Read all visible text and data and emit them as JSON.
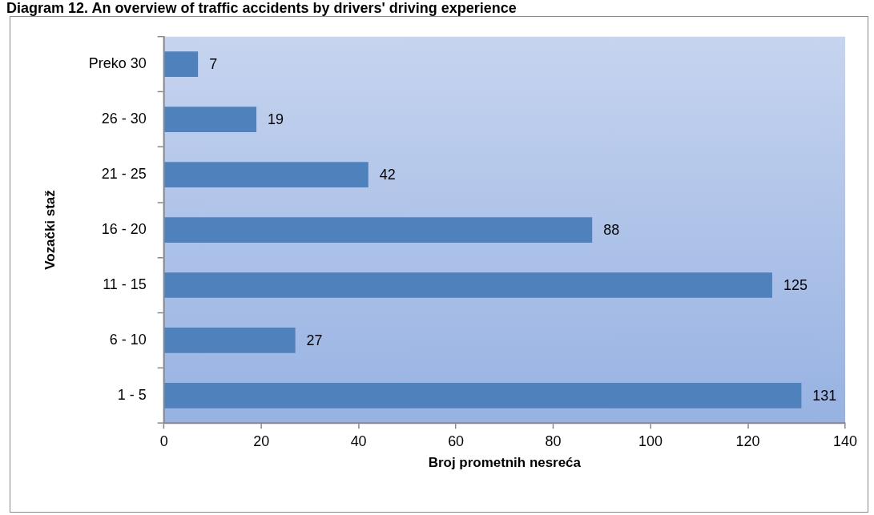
{
  "chart_data": {
    "type": "bar",
    "orientation": "horizontal",
    "title": "Diagram 12. An overview of traffic accidents by drivers' driving experience",
    "xlabel": "Broj prometnih nesreća",
    "ylabel": "Vozački staž",
    "categories": [
      "Preko 30",
      "26 - 30",
      "21 - 25",
      "16 - 20",
      "11 - 15",
      "6 - 10",
      "1 - 5"
    ],
    "values": [
      7,
      19,
      42,
      88,
      125,
      27,
      131
    ],
    "color": "#4f81bd",
    "xlim": [
      0,
      140
    ],
    "xticks": [
      0,
      20,
      40,
      60,
      80,
      100,
      120,
      140
    ],
    "data_labels": true,
    "legend": false
  }
}
